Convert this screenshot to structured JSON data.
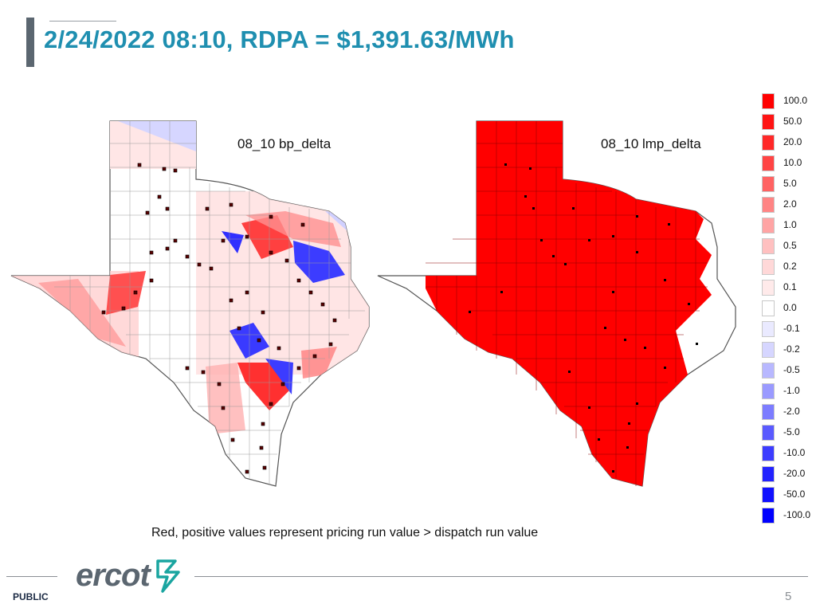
{
  "slide": {
    "title": "2/24/2022 08:10, RDPA = $1,391.63/MWh",
    "caption": "Red, positive values represent pricing run value > dispatch run value",
    "footer_label": "PUBLIC",
    "page_number": "5",
    "logo_text": "ercot"
  },
  "maps": [
    {
      "label": "08_10 bp_delta",
      "region": "Texas",
      "fill_note": "mixed"
    },
    {
      "label": "08_10 lmp_delta",
      "region": "Texas",
      "fill_note": "red"
    }
  ],
  "legend": {
    "items": [
      {
        "label": "100.0",
        "color": "#ff0000"
      },
      {
        "label": "50.0",
        "color": "#ff1414"
      },
      {
        "label": "20.0",
        "color": "#ff2828"
      },
      {
        "label": "10.0",
        "color": "#ff4444"
      },
      {
        "label": "5.0",
        "color": "#ff6262"
      },
      {
        "label": "2.0",
        "color": "#ff8484"
      },
      {
        "label": "1.0",
        "color": "#ffa4a4"
      },
      {
        "label": "0.5",
        "color": "#ffc0c0"
      },
      {
        "label": "0.2",
        "color": "#ffd8d8"
      },
      {
        "label": "0.1",
        "color": "#ffeaea"
      },
      {
        "label": "0.0",
        "color": "#ffffff"
      },
      {
        "label": "-0.1",
        "color": "#eaeaff"
      },
      {
        "label": "-0.2",
        "color": "#d6d6ff"
      },
      {
        "label": "-0.5",
        "color": "#b8b8ff"
      },
      {
        "label": "-1.0",
        "color": "#9a9aff"
      },
      {
        "label": "-2.0",
        "color": "#7c7cff"
      },
      {
        "label": "-5.0",
        "color": "#5a5aff"
      },
      {
        "label": "-10.0",
        "color": "#3c3cff"
      },
      {
        "label": "-20.0",
        "color": "#2222ff"
      },
      {
        "label": "-50.0",
        "color": "#1010ff"
      },
      {
        "label": "-100.0",
        "color": "#0000ff"
      }
    ]
  },
  "colors": {
    "title": "#1f8fb0",
    "positive": "#ff0000",
    "negative": "#0000ff"
  }
}
